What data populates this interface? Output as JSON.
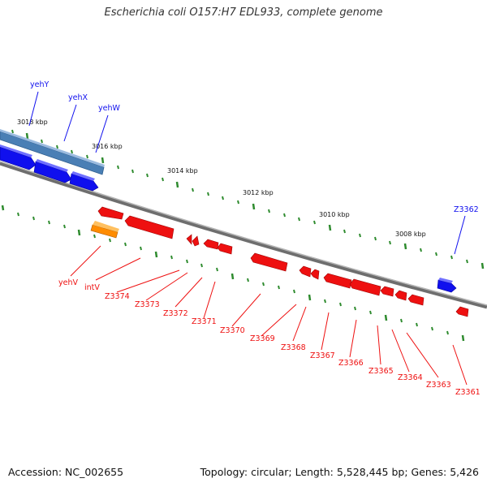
{
  "title": "Escherichia coli O157:H7 EDL933, complete genome",
  "footer": {
    "accession": "Accession: NC_002655",
    "summary": "Topology: circular; Length: 5,528,445 bp; Genes: 5,426"
  },
  "colors": {
    "forward_gene": "#1010ee",
    "reverse_gene": "#ee1010",
    "highlight_forward": "#4a7fb5",
    "highlight_reverse": "#ff8c00",
    "backbone": "#808080",
    "tick": "#2e8b2e"
  },
  "kbp_labels": [
    "3018 kbp",
    "3016 kbp",
    "3014 kbp",
    "3012 kbp",
    "3010 kbp",
    "3008 kbp"
  ],
  "forward_genes": [
    "yehY",
    "yehX",
    "yehW",
    "Z3362"
  ],
  "reverse_genes": [
    "yehV",
    "intV",
    "Z3374",
    "Z3373",
    "Z3372",
    "Z3371",
    "Z3370",
    "Z3369",
    "Z3368",
    "Z3367",
    "Z3366",
    "Z3365",
    "Z3364",
    "Z3363",
    "Z3361"
  ]
}
